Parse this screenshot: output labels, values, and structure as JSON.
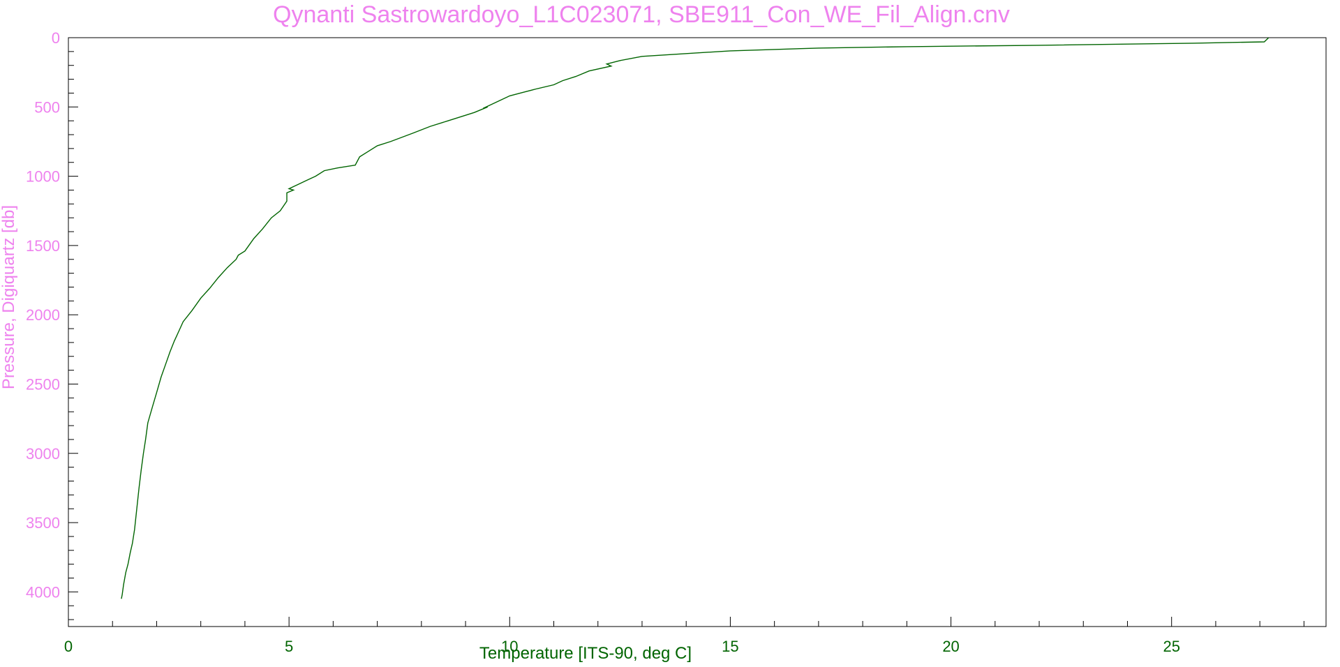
{
  "colors": {
    "title": "#EE82EE",
    "y_axis": "#EE82EE",
    "x_axis": "#006400",
    "series": "#006400",
    "frame": "#000000",
    "background": "#FFFFFF"
  },
  "chart_data": {
    "type": "line",
    "title": "Qynanti Sastrowardoyo_L1C023071, SBE911_Con_WE_Fil_Align.cnv",
    "xlabel": "Temperature [ITS-90, deg C]",
    "ylabel": "Pressure, Digiquartz [db]",
    "xlim": [
      0,
      28.5
    ],
    "ylim": [
      4250,
      0
    ],
    "y_inverted": true,
    "grid": false,
    "x_ticks": [
      "0",
      "5",
      "10",
      "15",
      "20",
      "25"
    ],
    "y_ticks": [
      "0",
      "500",
      "1000",
      "1500",
      "2000",
      "2500",
      "3000",
      "3500",
      "4000"
    ],
    "series": [
      {
        "x": [
          27.2,
          27.1,
          25.5,
          22.0,
          19.0,
          17.0,
          15.0,
          14.0,
          13.0,
          12.5,
          12.2,
          12.3,
          11.8,
          11.5,
          11.2,
          11.0,
          10.6,
          10.3,
          10.0,
          9.8,
          9.4,
          9.5,
          9.2,
          9.0,
          8.6,
          8.2,
          7.8,
          7.3,
          7.0,
          6.8,
          6.6,
          6.5,
          6.1,
          5.8,
          5.6,
          5.4,
          5.2,
          5.0,
          5.1,
          4.95,
          4.95,
          4.8,
          4.6,
          4.4,
          4.2,
          4.0,
          3.85,
          3.8,
          3.6,
          3.4,
          3.2,
          3.0,
          2.8,
          2.6,
          2.5,
          2.4,
          2.3,
          2.2,
          2.1,
          2.0,
          1.9,
          1.8,
          1.75,
          1.7,
          1.65,
          1.6,
          1.55,
          1.5,
          1.45,
          1.4,
          1.35,
          1.3,
          1.25,
          1.22,
          1.2
        ],
        "y": [
          0,
          30,
          40,
          55,
          65,
          75,
          95,
          115,
          135,
          165,
          190,
          205,
          240,
          280,
          310,
          340,
          370,
          395,
          420,
          450,
          510,
          500,
          540,
          560,
          600,
          640,
          690,
          750,
          780,
          820,
          860,
          920,
          940,
          960,
          1000,
          1030,
          1060,
          1090,
          1100,
          1120,
          1180,
          1250,
          1300,
          1380,
          1450,
          1540,
          1570,
          1600,
          1660,
          1730,
          1810,
          1880,
          1970,
          2050,
          2120,
          2190,
          2270,
          2360,
          2450,
          2560,
          2670,
          2780,
          2900,
          3000,
          3120,
          3250,
          3400,
          3550,
          3650,
          3720,
          3800,
          3860,
          3950,
          4020,
          4050
        ]
      }
    ]
  }
}
